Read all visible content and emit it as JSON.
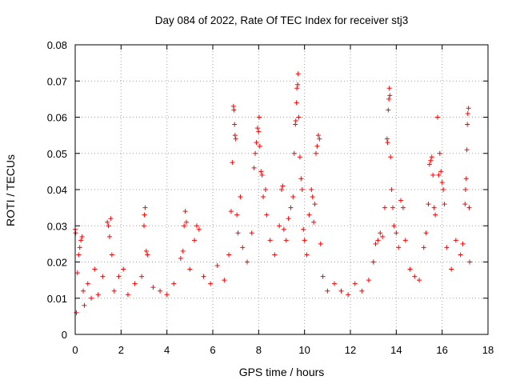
{
  "chart_data": {
    "type": "scatter",
    "title": "Day 084 of 2022, Rate Of TEC Index for receiver stj3",
    "xlabel": "GPS time / hours",
    "ylabel": "ROTI / TECUs",
    "xlim": [
      0,
      18
    ],
    "ylim": [
      0,
      0.08
    ],
    "x_ticks": [
      0,
      2,
      4,
      6,
      8,
      10,
      12,
      14,
      16,
      18
    ],
    "x_tick_labels": [
      "0",
      "2",
      "4",
      "6",
      "8",
      "10",
      "12",
      "14",
      "16",
      "18"
    ],
    "y_ticks": [
      0,
      0.01,
      0.02,
      0.03,
      0.04,
      0.05,
      0.06,
      0.07,
      0.08
    ],
    "y_tick_labels": [
      "0",
      "0.01",
      "0.02",
      "0.03",
      "0.04",
      "0.05",
      "0.06",
      "0.07",
      "0.08"
    ],
    "grid": true,
    "marker": "+",
    "color": "#ff0000",
    "series": [
      {
        "name": "ROTI",
        "points": [
          [
            0.0,
            0.029
          ],
          [
            0.02,
            0.028
          ],
          [
            0.05,
            0.006
          ],
          [
            0.1,
            0.017
          ],
          [
            0.15,
            0.022
          ],
          [
            0.2,
            0.024
          ],
          [
            0.25,
            0.026
          ],
          [
            0.3,
            0.027
          ],
          [
            0.35,
            0.012
          ],
          [
            0.4,
            0.008
          ],
          [
            0.55,
            0.014
          ],
          [
            0.7,
            0.01
          ],
          [
            0.85,
            0.018
          ],
          [
            1.0,
            0.011
          ],
          [
            1.2,
            0.016
          ],
          [
            1.4,
            0.031
          ],
          [
            1.45,
            0.03
          ],
          [
            1.5,
            0.027
          ],
          [
            1.55,
            0.032
          ],
          [
            1.6,
            0.022
          ],
          [
            1.7,
            0.012
          ],
          [
            1.9,
            0.016
          ],
          [
            2.1,
            0.018
          ],
          [
            2.3,
            0.011
          ],
          [
            2.6,
            0.014
          ],
          [
            2.9,
            0.016
          ],
          [
            3.0,
            0.03
          ],
          [
            3.02,
            0.033
          ],
          [
            3.05,
            0.035
          ],
          [
            3.1,
            0.023
          ],
          [
            3.15,
            0.022
          ],
          [
            3.4,
            0.013
          ],
          [
            3.7,
            0.012
          ],
          [
            4.0,
            0.011
          ],
          [
            4.3,
            0.014
          ],
          [
            4.6,
            0.021
          ],
          [
            4.7,
            0.023
          ],
          [
            4.75,
            0.03
          ],
          [
            4.8,
            0.034
          ],
          [
            4.85,
            0.031
          ],
          [
            5.0,
            0.018
          ],
          [
            5.2,
            0.026
          ],
          [
            5.3,
            0.03
          ],
          [
            5.4,
            0.029
          ],
          [
            5.6,
            0.016
          ],
          [
            5.9,
            0.014
          ],
          [
            6.2,
            0.019
          ],
          [
            6.5,
            0.015
          ],
          [
            6.7,
            0.022
          ],
          [
            6.8,
            0.034
          ],
          [
            6.85,
            0.0475
          ],
          [
            6.9,
            0.063
          ],
          [
            6.92,
            0.062
          ],
          [
            6.95,
            0.058
          ],
          [
            6.97,
            0.055
          ],
          [
            7.0,
            0.054
          ],
          [
            7.05,
            0.033
          ],
          [
            7.1,
            0.028
          ],
          [
            7.2,
            0.038
          ],
          [
            7.3,
            0.024
          ],
          [
            7.5,
            0.02
          ],
          [
            7.7,
            0.028
          ],
          [
            7.8,
            0.046
          ],
          [
            7.85,
            0.05
          ],
          [
            7.9,
            0.053
          ],
          [
            7.95,
            0.057
          ],
          [
            8.0,
            0.056
          ],
          [
            8.02,
            0.06
          ],
          [
            8.05,
            0.052
          ],
          [
            8.1,
            0.045
          ],
          [
            8.15,
            0.044
          ],
          [
            8.2,
            0.038
          ],
          [
            8.3,
            0.04
          ],
          [
            8.35,
            0.033
          ],
          [
            8.5,
            0.026
          ],
          [
            8.7,
            0.022
          ],
          [
            8.9,
            0.03
          ],
          [
            9.0,
            0.04
          ],
          [
            9.05,
            0.041
          ],
          [
            9.1,
            0.029
          ],
          [
            9.2,
            0.026
          ],
          [
            9.3,
            0.032
          ],
          [
            9.4,
            0.035
          ],
          [
            9.5,
            0.038
          ],
          [
            9.55,
            0.05
          ],
          [
            9.6,
            0.058
          ],
          [
            9.62,
            0.059
          ],
          [
            9.65,
            0.064
          ],
          [
            9.67,
            0.068
          ],
          [
            9.7,
            0.069
          ],
          [
            9.72,
            0.072
          ],
          [
            9.75,
            0.06
          ],
          [
            9.8,
            0.049
          ],
          [
            9.85,
            0.043
          ],
          [
            9.9,
            0.04
          ],
          [
            9.95,
            0.029
          ],
          [
            10.0,
            0.026
          ],
          [
            10.1,
            0.022
          ],
          [
            10.2,
            0.033
          ],
          [
            10.3,
            0.04
          ],
          [
            10.35,
            0.038
          ],
          [
            10.4,
            0.031
          ],
          [
            10.45,
            0.036
          ],
          [
            10.5,
            0.05
          ],
          [
            10.55,
            0.052
          ],
          [
            10.6,
            0.055
          ],
          [
            10.65,
            0.054
          ],
          [
            10.7,
            0.025
          ],
          [
            10.8,
            0.016
          ],
          [
            11.0,
            0.012
          ],
          [
            11.3,
            0.014
          ],
          [
            11.6,
            0.012
          ],
          [
            11.9,
            0.011
          ],
          [
            12.2,
            0.014
          ],
          [
            12.5,
            0.012
          ],
          [
            12.8,
            0.015
          ],
          [
            13.0,
            0.02
          ],
          [
            13.1,
            0.025
          ],
          [
            13.2,
            0.026
          ],
          [
            13.3,
            0.028
          ],
          [
            13.4,
            0.027
          ],
          [
            13.5,
            0.035
          ],
          [
            13.6,
            0.054
          ],
          [
            13.62,
            0.053
          ],
          [
            13.65,
            0.062
          ],
          [
            13.68,
            0.065
          ],
          [
            13.7,
            0.068
          ],
          [
            13.72,
            0.066
          ],
          [
            13.75,
            0.049
          ],
          [
            13.8,
            0.04
          ],
          [
            13.85,
            0.035
          ],
          [
            13.9,
            0.03
          ],
          [
            14.0,
            0.028
          ],
          [
            14.1,
            0.024
          ],
          [
            14.2,
            0.037
          ],
          [
            14.3,
            0.035
          ],
          [
            14.4,
            0.026
          ],
          [
            14.6,
            0.018
          ],
          [
            14.8,
            0.016
          ],
          [
            15.0,
            0.015
          ],
          [
            15.2,
            0.024
          ],
          [
            15.3,
            0.028
          ],
          [
            15.4,
            0.036
          ],
          [
            15.45,
            0.047
          ],
          [
            15.5,
            0.048
          ],
          [
            15.55,
            0.049
          ],
          [
            15.6,
            0.044
          ],
          [
            15.65,
            0.035
          ],
          [
            15.7,
            0.033
          ],
          [
            15.8,
            0.06
          ],
          [
            15.85,
            0.044
          ],
          [
            15.9,
            0.05
          ],
          [
            15.95,
            0.045
          ],
          [
            16.0,
            0.042
          ],
          [
            16.05,
            0.04
          ],
          [
            16.1,
            0.036
          ],
          [
            16.2,
            0.024
          ],
          [
            16.4,
            0.018
          ],
          [
            16.6,
            0.026
          ],
          [
            16.8,
            0.022
          ],
          [
            16.9,
            0.025
          ],
          [
            17.0,
            0.036
          ],
          [
            17.02,
            0.04
          ],
          [
            17.05,
            0.043
          ],
          [
            17.08,
            0.051
          ],
          [
            17.1,
            0.058
          ],
          [
            17.12,
            0.061
          ],
          [
            17.15,
            0.0625
          ],
          [
            17.18,
            0.035
          ],
          [
            17.2,
            0.02
          ]
        ]
      }
    ]
  }
}
